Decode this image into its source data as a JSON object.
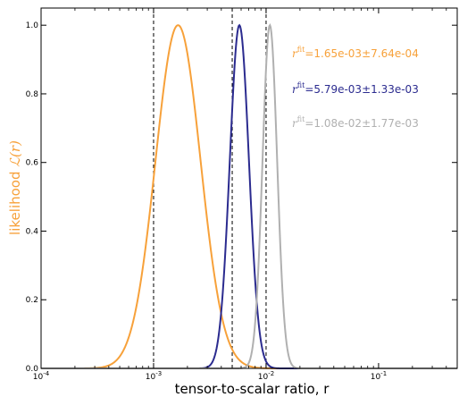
{
  "chart_data": {
    "type": "line",
    "xscale": "log",
    "xlim": [
      0.0001,
      0.5
    ],
    "ylim": [
      0,
      1.05
    ],
    "x_ticks": [
      {
        "value": 0.0001,
        "base": "10",
        "exp": "-4"
      },
      {
        "value": 0.001,
        "base": "10",
        "exp": "-3"
      },
      {
        "value": 0.01,
        "base": "10",
        "exp": "-2"
      },
      {
        "value": 0.1,
        "base": "10",
        "exp": "-1"
      }
    ],
    "y_ticks": [
      "0.0",
      "0.2",
      "0.4",
      "0.6",
      "0.8",
      "1.0"
    ],
    "y_tick_values": [
      0,
      0.2,
      0.4,
      0.6,
      0.8,
      1.0
    ],
    "xlabel": "tensor-to-scalar ratio, r",
    "ylabel_prefix": "likelihood ",
    "ylabel_math": "ℒ(r)",
    "vlines": [
      0.001,
      0.005,
      0.01
    ],
    "series": [
      {
        "color": "#f7a13a",
        "peak": 0.00165,
        "sigma_log10": 0.2,
        "annotation": {
          "r": "r",
          "sup": "fit",
          "text": "=1.65e-03±7.64e-04"
        }
      },
      {
        "color": "#2b2b8f",
        "peak": 0.00579,
        "sigma_log10": 0.085,
        "annotation": {
          "r": "r",
          "sup": "fit",
          "text": "=5.79e-03±1.33e-03"
        }
      },
      {
        "color": "#b0b0b0",
        "peak": 0.0108,
        "sigma_log10": 0.065,
        "annotation": {
          "r": "r",
          "sup": "fit",
          "text": "=1.08e-02±1.77e-03"
        }
      }
    ]
  }
}
